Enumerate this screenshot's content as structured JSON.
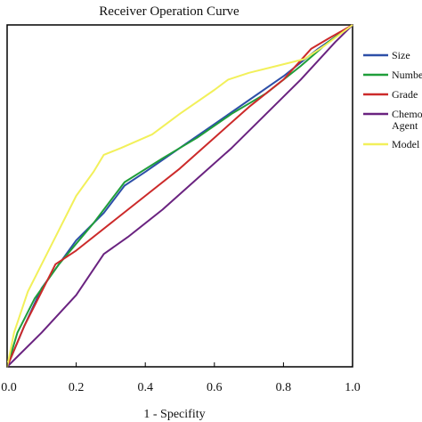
{
  "chart_data": {
    "type": "line",
    "title": "Receiver Operation Curve",
    "xlabel": "1 - Specifity",
    "ylabel": "",
    "xlim": [
      0,
      1
    ],
    "ylim": [
      0,
      1
    ],
    "x_ticks": [
      "0.0",
      "0.2",
      "0.4",
      "0.6",
      "0.8",
      "1.0"
    ],
    "grid": false,
    "legend_position": "right",
    "series": [
      {
        "name": "Size",
        "color": "#2d4fa8",
        "points": [
          [
            0,
            0
          ],
          [
            0.05,
            0.12
          ],
          [
            0.1,
            0.23
          ],
          [
            0.2,
            0.37
          ],
          [
            0.28,
            0.45
          ],
          [
            0.34,
            0.53
          ],
          [
            0.4,
            0.57
          ],
          [
            0.5,
            0.64
          ],
          [
            0.6,
            0.71
          ],
          [
            0.7,
            0.78
          ],
          [
            0.8,
            0.85
          ],
          [
            0.9,
            0.93
          ],
          [
            1,
            1
          ]
        ]
      },
      {
        "name": "Number",
        "color": "#1f9e3a",
        "points": [
          [
            0,
            0
          ],
          [
            0.03,
            0.1
          ],
          [
            0.08,
            0.2
          ],
          [
            0.15,
            0.3
          ],
          [
            0.25,
            0.42
          ],
          [
            0.34,
            0.54
          ],
          [
            0.45,
            0.61
          ],
          [
            0.55,
            0.67
          ],
          [
            0.65,
            0.74
          ],
          [
            0.75,
            0.8
          ],
          [
            0.85,
            0.88
          ],
          [
            0.93,
            0.95
          ],
          [
            1,
            1
          ]
        ]
      },
      {
        "name": "Grade",
        "color": "#cc2a2a",
        "points": [
          [
            0,
            0
          ],
          [
            0.05,
            0.12
          ],
          [
            0.1,
            0.22
          ],
          [
            0.14,
            0.3
          ],
          [
            0.2,
            0.34
          ],
          [
            0.3,
            0.42
          ],
          [
            0.4,
            0.5
          ],
          [
            0.5,
            0.58
          ],
          [
            0.6,
            0.67
          ],
          [
            0.7,
            0.76
          ],
          [
            0.8,
            0.84
          ],
          [
            0.88,
            0.93
          ],
          [
            0.93,
            0.96
          ],
          [
            1,
            1
          ]
        ]
      },
      {
        "name": "Chemo Agent",
        "color": "#6a2380",
        "points": [
          [
            0,
            0
          ],
          [
            0.1,
            0.1
          ],
          [
            0.2,
            0.21
          ],
          [
            0.28,
            0.33
          ],
          [
            0.35,
            0.38
          ],
          [
            0.45,
            0.46
          ],
          [
            0.55,
            0.55
          ],
          [
            0.65,
            0.64
          ],
          [
            0.75,
            0.74
          ],
          [
            0.85,
            0.84
          ],
          [
            0.95,
            0.95
          ],
          [
            1,
            1
          ]
        ]
      },
      {
        "name": "Model",
        "color": "#f2f05a",
        "points": [
          [
            0,
            0
          ],
          [
            0.02,
            0.1
          ],
          [
            0.06,
            0.22
          ],
          [
            0.1,
            0.3
          ],
          [
            0.15,
            0.4
          ],
          [
            0.2,
            0.5
          ],
          [
            0.25,
            0.57
          ],
          [
            0.28,
            0.62
          ],
          [
            0.33,
            0.64
          ],
          [
            0.42,
            0.68
          ],
          [
            0.5,
            0.74
          ],
          [
            0.6,
            0.81
          ],
          [
            0.64,
            0.84
          ],
          [
            0.7,
            0.86
          ],
          [
            0.78,
            0.88
          ],
          [
            0.86,
            0.9
          ],
          [
            0.92,
            0.94
          ],
          [
            1,
            1
          ]
        ]
      }
    ]
  }
}
